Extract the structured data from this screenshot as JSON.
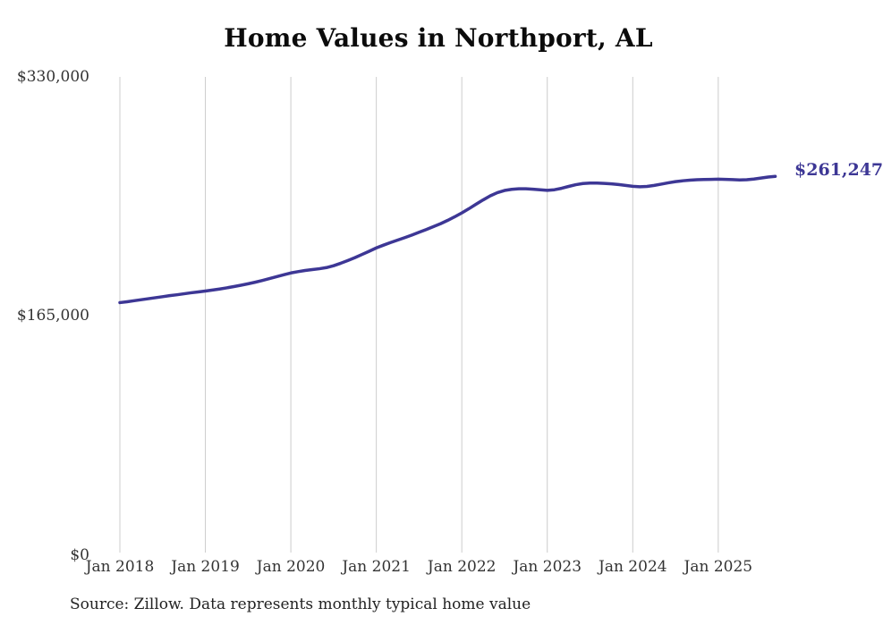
{
  "title": "Home Values in Northport, AL",
  "source_note": "Source: Zillow. Data represents monthly typical home value",
  "end_label": "$261,247",
  "colors": {
    "line": "#3d3795",
    "grid": "#cccccc",
    "title_text": "#0b0b0b",
    "axis_text": "#333333",
    "source_text": "#222222"
  },
  "y_axis": {
    "ticks": [
      "$330,000",
      "$165,000",
      "$0"
    ]
  },
  "x_axis": {
    "ticks": [
      "Jan 2018",
      "Jan 2019",
      "Jan 2020",
      "Jan 2021",
      "Jan 2022",
      "Jan 2023",
      "Jan 2024",
      "Jan 2025"
    ]
  },
  "chart_data": {
    "type": "line",
    "title": "Home Values in Northport, AL",
    "series_name": "Monthly typical home value",
    "x_start": "2018-01",
    "x_end": "2025-09",
    "x_frequency": "monthly",
    "x_tick_labels": [
      "Jan 2018",
      "Jan 2019",
      "Jan 2020",
      "Jan 2021",
      "Jan 2022",
      "Jan 2023",
      "Jan 2024",
      "Jan 2025"
    ],
    "y_tick_values": [
      0,
      165000,
      330000
    ],
    "ylim": [
      0,
      330000
    ],
    "legend": "none",
    "grid": "vertical-only",
    "final_value": 261247,
    "values": [
      174000,
      174600,
      175300,
      176000,
      176700,
      177400,
      178100,
      178800,
      179400,
      180100,
      180800,
      181400,
      182000,
      182700,
      183400,
      184200,
      185100,
      186000,
      187000,
      188100,
      189300,
      190600,
      191900,
      193200,
      194500,
      195400,
      196200,
      196800,
      197400,
      198200,
      199500,
      201200,
      203100,
      205100,
      207300,
      209500,
      211800,
      213700,
      215500,
      217200,
      218900,
      220700,
      222600,
      224500,
      226500,
      228500,
      230800,
      233300,
      236000,
      238900,
      242000,
      245000,
      247800,
      250000,
      251500,
      252300,
      252700,
      252700,
      252400,
      252000,
      251600,
      252000,
      253000,
      254300,
      255500,
      256300,
      256600,
      256600,
      256400,
      256100,
      255600,
      255000,
      254400,
      254100,
      254300,
      255000,
      255900,
      256800,
      257600,
      258200,
      258600,
      258900,
      259100,
      259200,
      259300,
      259200,
      259000,
      258800,
      258900,
      259400,
      260100,
      260800,
      261247
    ]
  }
}
